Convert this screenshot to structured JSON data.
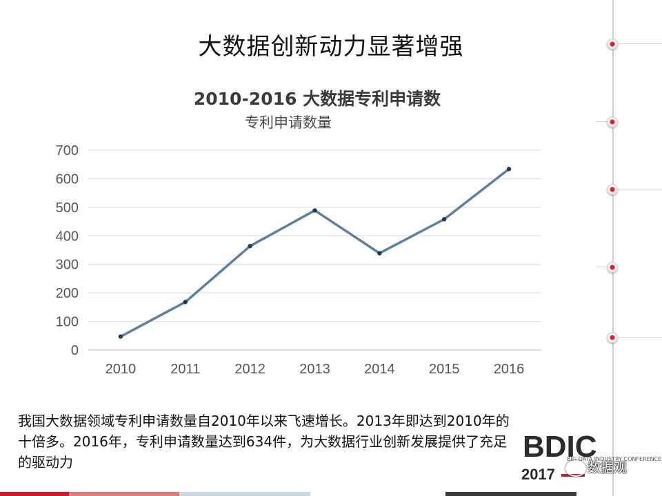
{
  "slide": {
    "title": "大数据创新动力显著增强",
    "summary": "我国大数据领域专利申请数量自2010年以来飞速增长。2013年即达到2010年的十倍多。2016年，专利申请数量达到634件，为大数据行业创新发展提供了充足的驱动力"
  },
  "chart_data": {
    "type": "line",
    "title": "2010-2016 大数据专利申请数",
    "categories": [
      "2010",
      "2011",
      "2012",
      "2013",
      "2014",
      "2015",
      "2016"
    ],
    "series": [
      {
        "name": "专利申请数量",
        "values": [
          47,
          168,
          364,
          489,
          339,
          458,
          634
        ]
      }
    ],
    "ylim": [
      0,
      700
    ],
    "yticks": [
      0,
      100,
      200,
      300,
      400,
      500,
      600,
      700
    ],
    "grid": true,
    "colors": {
      "line": "#5b7fa6",
      "marker": "#1f3a5a",
      "grid": "#d9d9d9"
    }
  },
  "branding": {
    "logo_text": "BDIC",
    "logo_subtitle": "BIG DATA INDUSTRY CONFERENCE",
    "logo_year": "2017",
    "watermark": "数据观",
    "watermark_icon": "wechat-icon",
    "accent": "#c8202a"
  }
}
